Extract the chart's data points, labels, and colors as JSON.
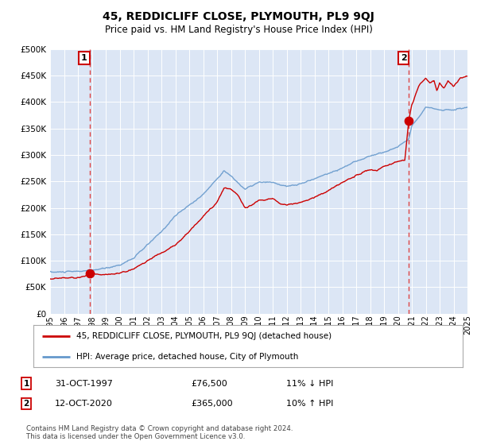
{
  "title": "45, REDDICLIFF CLOSE, PLYMOUTH, PL9 9QJ",
  "subtitle": "Price paid vs. HM Land Registry's House Price Index (HPI)",
  "legend_line1": "45, REDDICLIFF CLOSE, PLYMOUTH, PL9 9QJ (detached house)",
  "legend_line2": "HPI: Average price, detached house, City of Plymouth",
  "annotation1_label": "1",
  "annotation1_date": "31-OCT-1997",
  "annotation1_price": "£76,500",
  "annotation1_hpi": "11% ↓ HPI",
  "annotation2_label": "2",
  "annotation2_date": "12-OCT-2020",
  "annotation2_price": "£365,000",
  "annotation2_hpi": "10% ↑ HPI",
  "footer": "Contains HM Land Registry data © Crown copyright and database right 2024.\nThis data is licensed under the Open Government Licence v3.0.",
  "price_line_color": "#cc0000",
  "hpi_line_color": "#6699cc",
  "background_color": "#dce6f5",
  "ylim": [
    0,
    500000
  ],
  "yticks": [
    0,
    50000,
    100000,
    150000,
    200000,
    250000,
    300000,
    350000,
    400000,
    450000,
    500000
  ],
  "sale1_year": 1997.83,
  "sale1_value": 76500,
  "sale2_year": 2020.78,
  "sale2_value": 365000,
  "xmin": 1995,
  "xmax": 2025
}
